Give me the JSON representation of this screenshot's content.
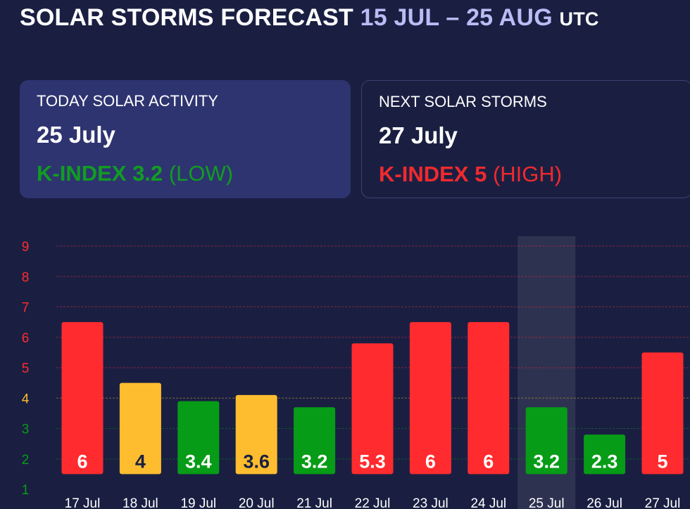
{
  "header": {
    "title": "SOLAR STORMS FORECAST",
    "range": "15 JUL – 25 AUG",
    "tz": "UTC"
  },
  "today_card": {
    "label": "TODAY SOLAR ACTIVITY",
    "date": "25 July",
    "kindex_label": "K-INDEX 3.2",
    "level": "(LOW)",
    "color": "#119c22"
  },
  "next_card": {
    "label": "NEXT SOLAR STORMS",
    "date": "27 July",
    "kindex_label": "K-INDEX 5",
    "level": "(HIGH)",
    "color": "#f02a2e"
  },
  "colors": {
    "background": "#1a1f42",
    "card": "#2e3470",
    "high": "#ff2b2e",
    "medium": "#fdbd2e",
    "low": "#079c17",
    "highlight_band": "#2d3250"
  },
  "chart_data": {
    "type": "bar",
    "categories": [
      "17 Jul",
      "18 Jul",
      "19 Jul",
      "20 Jul",
      "21 Jul",
      "22 Jul",
      "23 Jul",
      "24 Jul",
      "25 Jul",
      "26 Jul",
      "27 Jul"
    ],
    "values": [
      6,
      4,
      3.4,
      3.6,
      3.2,
      5.3,
      6,
      6,
      3.2,
      2.3,
      5
    ],
    "value_labels": [
      "6",
      "4",
      "3.4",
      "3.6",
      "3.2",
      "5.3",
      "6",
      "6",
      "3.2",
      "2.3",
      "5"
    ],
    "levels": [
      "high",
      "medium",
      "low",
      "medium",
      "low",
      "high",
      "high",
      "high",
      "low",
      "low",
      "high"
    ],
    "highlighted_category": "25 Jul",
    "y_ticks": [
      1,
      2,
      3,
      4,
      5,
      6,
      7,
      8,
      9
    ],
    "ylim": [
      1,
      9
    ],
    "grid": true
  }
}
